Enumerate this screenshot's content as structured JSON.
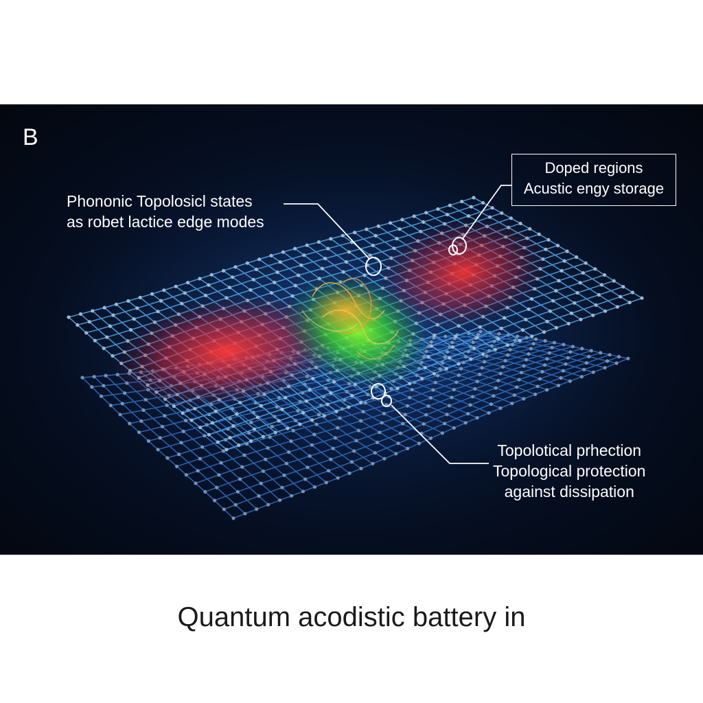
{
  "figure": {
    "panel_letter": "B",
    "callouts": {
      "topological_states": [
        "Phononic Topolosicl states",
        "as robet lactice edge modes"
      ],
      "doped_regions": [
        "Doped regions",
        "Acustic engy storage"
      ],
      "protection": [
        "Topolotical prhection",
        "Topological protection",
        "against dissipation"
      ]
    }
  },
  "caption": "Quantum acodistic battery in"
}
